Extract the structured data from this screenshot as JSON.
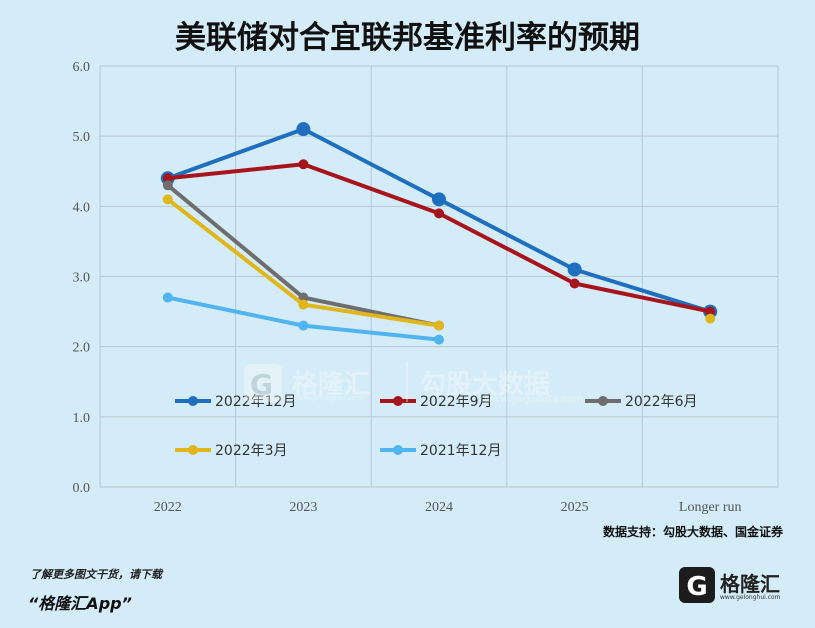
{
  "header": {
    "title": "美联储对合宜联邦基准利率的预期"
  },
  "chart_data": {
    "type": "line",
    "title": "美联储对合宜联邦基准利率的预期",
    "categories": [
      "2022",
      "2023",
      "2024",
      "2025",
      "Longer run"
    ],
    "ylim": [
      0,
      6
    ],
    "yticks": [
      "0.0",
      "1.0",
      "2.0",
      "3.0",
      "4.0",
      "5.0",
      "6.0"
    ],
    "grid": true,
    "legend_position": "inside-bottom",
    "series": [
      {
        "name": "2022年12月",
        "color": "#1f6fbf",
        "values": [
          4.4,
          5.1,
          4.1,
          3.1,
          2.5
        ]
      },
      {
        "name": "2022年9月",
        "color": "#a8141c",
        "values": [
          4.4,
          4.6,
          3.9,
          2.9,
          2.5
        ]
      },
      {
        "name": "2022年6月",
        "color": "#6e6e6e",
        "values": [
          4.3,
          2.7,
          2.3,
          null,
          null
        ]
      },
      {
        "name": "2022年3月",
        "color": "#e0b61a",
        "values": [
          4.1,
          2.6,
          2.3,
          null,
          2.4
        ]
      },
      {
        "name": "2021年12月",
        "color": "#4fb4ef",
        "values": [
          2.7,
          2.3,
          2.1,
          null,
          null
        ]
      }
    ]
  },
  "source_note": "数据支持：勾股大数据、国金证券",
  "watermark": {
    "brand": "格隆汇",
    "brand_url": "www.gelonghui.com",
    "product": "勾股大数据",
    "product_url": "www.gogudata.com"
  },
  "footer": {
    "line1": "了解更多图文干货，请下载",
    "line2": "“格隆汇App”"
  },
  "logo": {
    "text": "格隆汇",
    "url": "www.gelonghui.com"
  }
}
